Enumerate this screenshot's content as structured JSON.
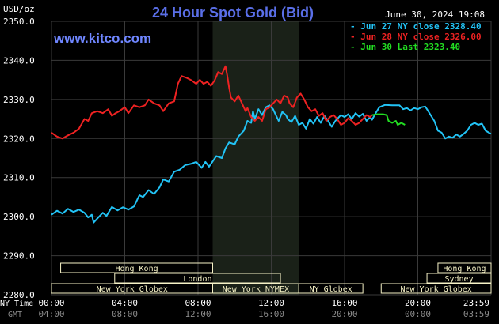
{
  "header": {
    "title": "24 Hour Spot Gold (Bid)",
    "y_unit": "USD/oz",
    "date_time": "June 30, 2024 19:08",
    "watermark": "www.kitco.com"
  },
  "colors": {
    "background": "#000000",
    "title": "#5a6fe8",
    "watermark": "#6f86ff",
    "grid": "#3a3a3a",
    "axis_text": "#ffffff",
    "sub_axis_text": "#8a8a8a",
    "nymex_shade": "#1a2118",
    "session_box": "#f6f2c6",
    "session_text": "#333333",
    "jun27": "#22c3f5",
    "jun28": "#ee2222",
    "jun30": "#22dd22"
  },
  "sessions": [
    {
      "label": "Hong Kong",
      "row": 0,
      "start": 0.5,
      "end": 8.8
    },
    {
      "label": "Hong Kong",
      "row": 0,
      "start": 21.1,
      "end": 24.0
    },
    {
      "label": "London",
      "row": 1,
      "start": 3.45,
      "end": 12.5
    },
    {
      "label": "Sydney",
      "row": 1,
      "start": 20.5,
      "end": 24.0
    },
    {
      "label": "New York Globex",
      "row": 2,
      "start": 0.0,
      "end": 8.8
    },
    {
      "label": "New York NYMEX",
      "row": 2,
      "start": 8.8,
      "end": 13.5
    },
    {
      "label": "NY Globex",
      "row": 2,
      "start": 13.5,
      "end": 17.0
    },
    {
      "label": "New York Globex",
      "row": 2,
      "start": 18.0,
      "end": 24.0
    }
  ],
  "axis_rows": {
    "ny_label": "NY Time",
    "gmt_label": "GMT",
    "ny_ticks": [
      "00:00",
      "04:00",
      "08:00",
      "12:00",
      "16:00",
      "20:00",
      "23:59"
    ],
    "gmt_ticks": [
      "04:00",
      "08:00",
      "12:00",
      "16:00",
      "20:00",
      "00:00",
      "03:59"
    ]
  },
  "chart_data": {
    "type": "line",
    "title": "24 Hour Spot Gold (Bid)",
    "ylabel": "USD/oz",
    "xlabel": "NY Time",
    "xlim": [
      0,
      24
    ],
    "ylim": [
      2280,
      2350
    ],
    "y_ticks": [
      "2280.0",
      "2290.0",
      "2300.0",
      "2310.0",
      "2320.0",
      "2330.0",
      "2340.0",
      "2350.0"
    ],
    "grid": true,
    "shaded_region": {
      "label": "New York NYMEX",
      "x": [
        8.8,
        13.5
      ]
    },
    "legend": {
      "placement": "top-right",
      "entries": [
        {
          "label": "- Jun 27 NY close 2328.40",
          "color": "#22c3f5"
        },
        {
          "label": "- Jun 28 NY close 2326.00",
          "color": "#ee2222"
        },
        {
          "label": "- Jun 30 Last 2323.40",
          "color": "#22dd22"
        }
      ]
    },
    "series": [
      {
        "name": "Jun 27 NY close 2328.40",
        "color": "#22c3f5",
        "points": [
          [
            0.0,
            2300.5
          ],
          [
            0.3,
            2301.5
          ],
          [
            0.6,
            2300.8
          ],
          [
            0.9,
            2302.0
          ],
          [
            1.2,
            2301.2
          ],
          [
            1.5,
            2301.8
          ],
          [
            1.8,
            2301.0
          ],
          [
            2.0,
            2299.8
          ],
          [
            2.2,
            2300.5
          ],
          [
            2.3,
            2298.5
          ],
          [
            2.5,
            2299.5
          ],
          [
            2.8,
            2301.0
          ],
          [
            3.0,
            2300.2
          ],
          [
            3.3,
            2302.5
          ],
          [
            3.6,
            2301.6
          ],
          [
            3.9,
            2302.4
          ],
          [
            4.2,
            2301.8
          ],
          [
            4.5,
            2302.6
          ],
          [
            4.8,
            2305.5
          ],
          [
            5.0,
            2305.0
          ],
          [
            5.3,
            2306.8
          ],
          [
            5.6,
            2305.8
          ],
          [
            5.9,
            2307.5
          ],
          [
            6.1,
            2309.5
          ],
          [
            6.4,
            2309.0
          ],
          [
            6.7,
            2311.5
          ],
          [
            7.0,
            2312.0
          ],
          [
            7.3,
            2313.2
          ],
          [
            7.6,
            2313.5
          ],
          [
            7.9,
            2314.0
          ],
          [
            8.2,
            2312.5
          ],
          [
            8.4,
            2314.0
          ],
          [
            8.6,
            2312.8
          ],
          [
            9.0,
            2315.5
          ],
          [
            9.3,
            2315.0
          ],
          [
            9.5,
            2317.5
          ],
          [
            9.7,
            2319.0
          ],
          [
            10.0,
            2318.5
          ],
          [
            10.2,
            2320.5
          ],
          [
            10.5,
            2322.0
          ],
          [
            10.7,
            2324.5
          ],
          [
            10.9,
            2324.0
          ],
          [
            11.0,
            2327.0
          ],
          [
            11.1,
            2325.0
          ],
          [
            11.3,
            2327.5
          ],
          [
            11.5,
            2326.0
          ],
          [
            11.7,
            2328.0
          ],
          [
            11.9,
            2328.5
          ],
          [
            12.1,
            2327.5
          ],
          [
            12.2,
            2326.5
          ],
          [
            12.4,
            2324.5
          ],
          [
            12.6,
            2326.8
          ],
          [
            12.8,
            2326.0
          ],
          [
            12.9,
            2325.0
          ],
          [
            13.1,
            2324.2
          ],
          [
            13.3,
            2325.8
          ],
          [
            13.5,
            2323.5
          ],
          [
            13.7,
            2324.0
          ],
          [
            13.9,
            2322.5
          ],
          [
            14.1,
            2325.0
          ],
          [
            14.3,
            2323.8
          ],
          [
            14.5,
            2325.5
          ],
          [
            14.7,
            2324.0
          ],
          [
            14.9,
            2325.8
          ],
          [
            15.1,
            2324.5
          ],
          [
            15.3,
            2323.0
          ],
          [
            15.5,
            2324.5
          ],
          [
            15.8,
            2326.0
          ],
          [
            16.0,
            2325.5
          ],
          [
            16.2,
            2326.2
          ],
          [
            16.4,
            2325.0
          ],
          [
            16.6,
            2326.5
          ],
          [
            16.8,
            2325.6
          ],
          [
            17.0,
            2326.3
          ],
          [
            17.2,
            2324.5
          ],
          [
            17.4,
            2325.5
          ],
          [
            17.5,
            2324.8
          ],
          [
            17.7,
            2326.5
          ],
          [
            17.9,
            2328.0
          ],
          [
            18.2,
            2328.6
          ],
          [
            18.6,
            2328.5
          ],
          [
            19.0,
            2328.5
          ],
          [
            19.2,
            2327.5
          ],
          [
            19.4,
            2327.8
          ],
          [
            19.6,
            2327.2
          ],
          [
            19.8,
            2327.8
          ],
          [
            20.0,
            2327.5
          ],
          [
            20.2,
            2328.0
          ],
          [
            20.4,
            2328.2
          ],
          [
            20.5,
            2327.5
          ],
          [
            20.7,
            2326.0
          ],
          [
            20.9,
            2324.5
          ],
          [
            21.1,
            2322.0
          ],
          [
            21.3,
            2321.5
          ],
          [
            21.5,
            2320.0
          ],
          [
            21.7,
            2320.5
          ],
          [
            21.9,
            2320.2
          ],
          [
            22.1,
            2321.0
          ],
          [
            22.3,
            2320.5
          ],
          [
            22.5,
            2321.2
          ],
          [
            22.7,
            2322.0
          ],
          [
            22.9,
            2323.5
          ],
          [
            23.1,
            2324.0
          ],
          [
            23.3,
            2323.5
          ],
          [
            23.5,
            2323.8
          ],
          [
            23.7,
            2322.0
          ],
          [
            23.99,
            2321.2
          ]
        ]
      },
      {
        "name": "Jun 28 NY close 2326.00",
        "color": "#ee2222",
        "points": [
          [
            0.0,
            2321.5
          ],
          [
            0.3,
            2320.5
          ],
          [
            0.6,
            2320.0
          ],
          [
            0.9,
            2320.8
          ],
          [
            1.2,
            2321.5
          ],
          [
            1.5,
            2322.5
          ],
          [
            1.8,
            2325.0
          ],
          [
            2.0,
            2324.5
          ],
          [
            2.2,
            2326.5
          ],
          [
            2.5,
            2327.0
          ],
          [
            2.8,
            2326.5
          ],
          [
            3.1,
            2327.5
          ],
          [
            3.3,
            2325.8
          ],
          [
            3.5,
            2326.5
          ],
          [
            3.7,
            2327.0
          ],
          [
            4.0,
            2328.0
          ],
          [
            4.2,
            2326.5
          ],
          [
            4.5,
            2328.5
          ],
          [
            4.8,
            2328.0
          ],
          [
            5.1,
            2328.5
          ],
          [
            5.3,
            2330.0
          ],
          [
            5.6,
            2329.0
          ],
          [
            5.9,
            2328.5
          ],
          [
            6.1,
            2327.0
          ],
          [
            6.4,
            2329.0
          ],
          [
            6.7,
            2329.5
          ],
          [
            6.9,
            2334.0
          ],
          [
            7.1,
            2336.0
          ],
          [
            7.4,
            2335.5
          ],
          [
            7.6,
            2335.0
          ],
          [
            7.9,
            2334.0
          ],
          [
            8.1,
            2335.0
          ],
          [
            8.3,
            2334.0
          ],
          [
            8.5,
            2334.5
          ],
          [
            8.7,
            2333.5
          ],
          [
            8.9,
            2334.8
          ],
          [
            9.1,
            2337.0
          ],
          [
            9.3,
            2336.5
          ],
          [
            9.5,
            2338.5
          ],
          [
            9.6,
            2336.0
          ],
          [
            9.7,
            2333.0
          ],
          [
            9.8,
            2330.5
          ],
          [
            10.0,
            2329.5
          ],
          [
            10.2,
            2331.0
          ],
          [
            10.4,
            2329.0
          ],
          [
            10.6,
            2327.0
          ],
          [
            10.7,
            2327.8
          ],
          [
            10.9,
            2325.5
          ],
          [
            11.1,
            2324.5
          ],
          [
            11.3,
            2325.5
          ],
          [
            11.5,
            2324.5
          ],
          [
            11.7,
            2327.5
          ],
          [
            11.9,
            2328.0
          ],
          [
            12.1,
            2329.0
          ],
          [
            12.3,
            2330.0
          ],
          [
            12.5,
            2329.0
          ],
          [
            12.7,
            2331.0
          ],
          [
            12.9,
            2330.5
          ],
          [
            13.0,
            2329.0
          ],
          [
            13.2,
            2328.0
          ],
          [
            13.4,
            2330.5
          ],
          [
            13.6,
            2331.5
          ],
          [
            13.8,
            2330.0
          ],
          [
            14.0,
            2328.0
          ],
          [
            14.2,
            2327.0
          ],
          [
            14.4,
            2327.5
          ],
          [
            14.6,
            2325.8
          ],
          [
            14.8,
            2326.5
          ],
          [
            15.0,
            2324.5
          ],
          [
            15.2,
            2325.5
          ],
          [
            15.4,
            2326.0
          ],
          [
            15.6,
            2325.0
          ],
          [
            15.8,
            2323.5
          ],
          [
            16.0,
            2324.0
          ],
          [
            16.2,
            2325.2
          ],
          [
            16.4,
            2324.5
          ],
          [
            16.6,
            2323.5
          ],
          [
            16.8,
            2324.0
          ],
          [
            17.0,
            2325.0
          ],
          [
            17.2,
            2326.0
          ],
          [
            17.4,
            2325.5
          ],
          [
            17.5,
            2326.0
          ]
        ]
      },
      {
        "name": "Jun 30 Last 2323.40",
        "color": "#22dd22",
        "points": [
          [
            17.5,
            2326.0
          ],
          [
            17.8,
            2326.2
          ],
          [
            18.1,
            2326.2
          ],
          [
            18.3,
            2326.0
          ],
          [
            18.4,
            2324.5
          ],
          [
            18.6,
            2324.0
          ],
          [
            18.8,
            2324.5
          ],
          [
            18.9,
            2323.5
          ],
          [
            19.1,
            2324.0
          ],
          [
            19.3,
            2323.5
          ]
        ]
      }
    ]
  }
}
